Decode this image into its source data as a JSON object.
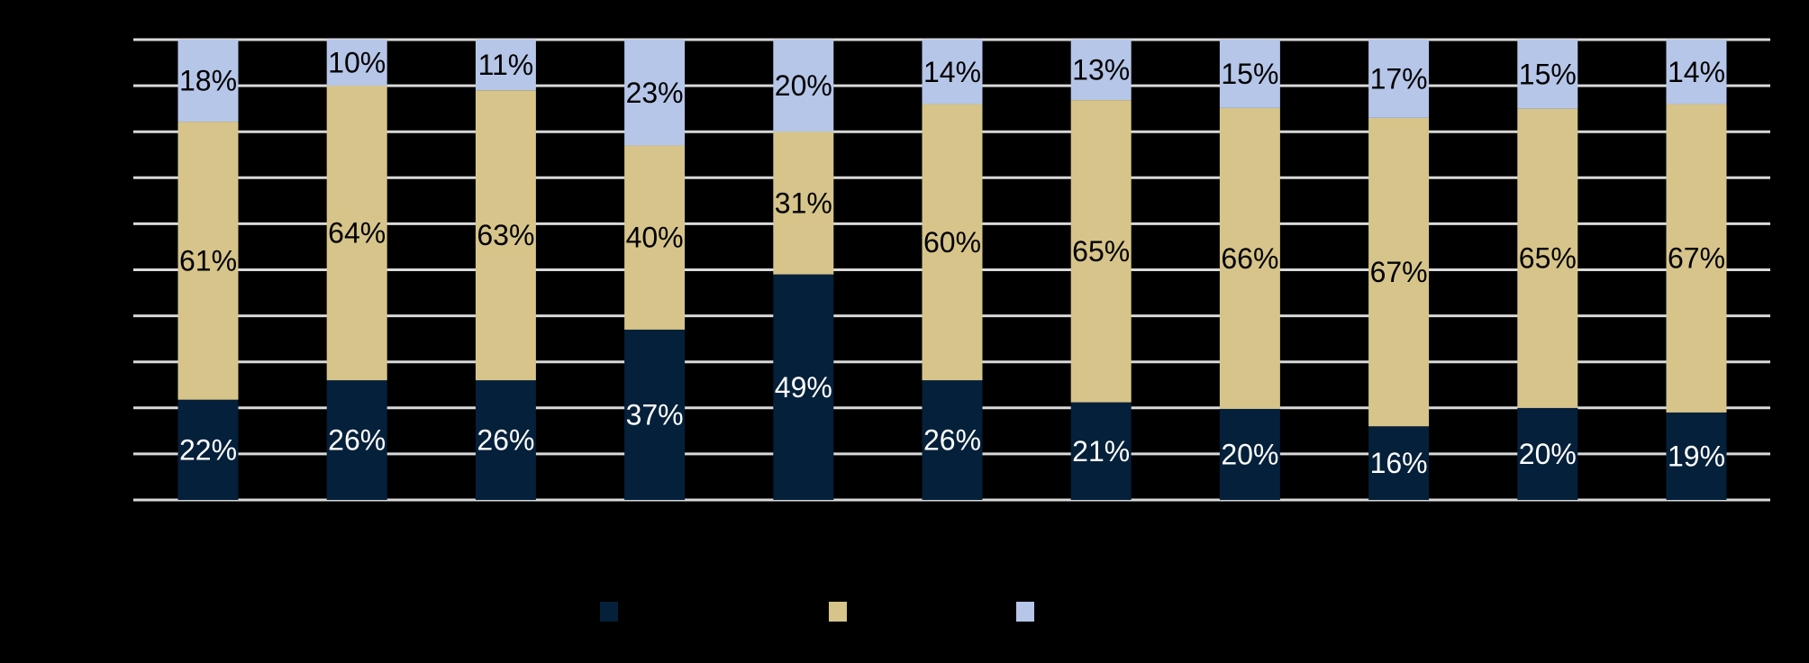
{
  "chart_data": {
    "type": "bar",
    "stacked": true,
    "percent_scale": true,
    "categories": [
      "",
      "",
      "",
      "",
      "",
      "",
      "",
      "",
      "",
      "",
      ""
    ],
    "series": [
      {
        "color": "#05203a",
        "label_color": "#ffffff",
        "values": [
          22,
          26,
          26,
          37,
          49,
          26,
          21,
          20,
          16,
          20,
          19
        ]
      },
      {
        "color": "#d6c48a",
        "label_color": "#000000",
        "values": [
          61,
          64,
          63,
          40,
          31,
          60,
          65,
          66,
          67,
          65,
          67
        ]
      },
      {
        "color": "#b6c6e8",
        "label_color": "#000000",
        "values": [
          18,
          10,
          11,
          23,
          20,
          14,
          13,
          15,
          17,
          15,
          14
        ]
      }
    ],
    "value_suffix": "%",
    "ylim": [
      0,
      100
    ],
    "gridlines": 10,
    "grid": true,
    "legend": "bottom-center"
  },
  "colors": {
    "background": "#000000",
    "gridline": "#d9d9d9"
  }
}
